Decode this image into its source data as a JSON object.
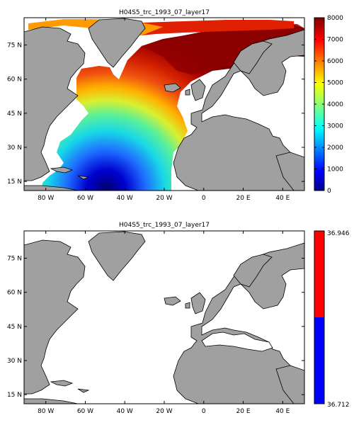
{
  "chart_data": [
    {
      "type": "heatmap",
      "title": "H04S5_trc_1993_07_layer17",
      "map_projection": "equirectangular",
      "xlim": [
        -91,
        51
      ],
      "ylim": [
        11,
        87
      ],
      "x_ticks": [
        -80,
        -60,
        -40,
        -20,
        0,
        20,
        40
      ],
      "x_tick_labels": [
        "80 W",
        "60 W",
        "40 W",
        "20 W",
        "0",
        "20 E",
        "40 E"
      ],
      "y_ticks": [
        15,
        30,
        45,
        60,
        75
      ],
      "y_tick_labels": [
        "15 N",
        "30 N",
        "45 N",
        "60 N",
        "75 N"
      ],
      "colorbar": {
        "colormap": "jet",
        "range": [
          0,
          8000
        ],
        "ticks": [
          0,
          1000,
          2000,
          3000,
          4000,
          5000,
          6000,
          7000,
          8000
        ],
        "tick_labels": [
          "0",
          "1000",
          "2000",
          "3000",
          "4000",
          "5000",
          "6000",
          "7000",
          "8000"
        ]
      },
      "land_color": "#a0a0a0",
      "missing_color": "#ffffff",
      "field_description": "tracer concentration high (~7000-8000) in the subpolar North Atlantic and Nordic Seas, decreasing southward to ~0 in the tropical eastern Atlantic near 15N; Mediterranean ~1000-3000"
    },
    {
      "type": "heatmap",
      "title": "H04S5_trc_1993_07_layer17",
      "map_projection": "equirectangular",
      "xlim": [
        -91,
        51
      ],
      "ylim": [
        11,
        87
      ],
      "x_ticks": [
        -80,
        -60,
        -40,
        -20,
        0,
        20,
        40
      ],
      "x_tick_labels": [
        "80 W",
        "60 W",
        "40 W",
        "20 W",
        "0",
        "20 E",
        "40 E"
      ],
      "y_ticks": [
        15,
        30,
        45,
        60,
        75
      ],
      "y_tick_labels": [
        "15 N",
        "30 N",
        "45 N",
        "60 N",
        "75 N"
      ],
      "colorbar": {
        "range": [
          36.712,
          36.946
        ],
        "colors": [
          "#0000ff",
          "#ff0000"
        ],
        "tick_labels": [
          "36.712",
          "36.946"
        ]
      },
      "land_color": "#a0a0a0",
      "missing_color": "#ffffff"
    }
  ]
}
